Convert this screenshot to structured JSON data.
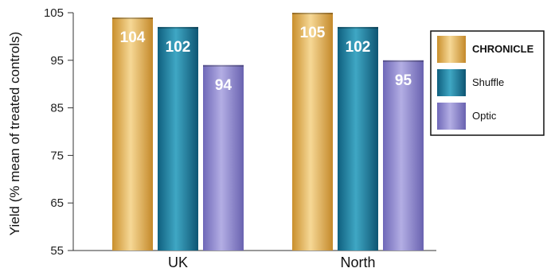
{
  "chart_data": {
    "type": "bar",
    "title": "",
    "ylabel": "Yield (% mean of treated controls)",
    "xlabel": "",
    "ylim": [
      55,
      105
    ],
    "yticks": [
      55,
      65,
      75,
      85,
      95,
      105
    ],
    "categories": [
      "UK",
      "North"
    ],
    "series": [
      {
        "name": "CHRONICLE",
        "values": [
          104,
          105
        ],
        "color": "#e2b25a"
      },
      {
        "name": "Shuffle",
        "values": [
          102,
          102
        ],
        "color": "#1f86a8"
      },
      {
        "name": "Optic",
        "values": [
          94,
          95
        ],
        "color": "#8c86cf"
      }
    ],
    "legend_position": "right",
    "grid": false
  }
}
